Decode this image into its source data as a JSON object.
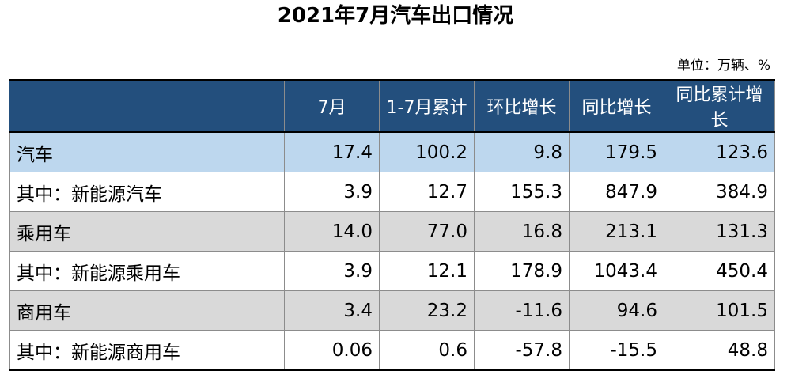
{
  "title": "2021年7月汽车出口情况",
  "unit": "单位：万辆、%",
  "table": {
    "headers": [
      "",
      "7月",
      "1-7月累计",
      "环比增长",
      "同比增长",
      "同比累计增长"
    ],
    "rows": [
      {
        "label": "汽车",
        "values": [
          "17.4",
          "100.2",
          "9.8",
          "179.5",
          "123.6"
        ]
      },
      {
        "label": "其中：新能源汽车",
        "values": [
          "3.9",
          "12.7",
          "155.3",
          "847.9",
          "384.9"
        ]
      },
      {
        "label": "乘用车",
        "values": [
          "14.0",
          "77.0",
          "16.8",
          "213.1",
          "131.3"
        ]
      },
      {
        "label": "其中：新能源乘用车",
        "values": [
          "3.9",
          "12.1",
          "178.9",
          "1043.4",
          "450.4"
        ]
      },
      {
        "label": "商用车",
        "values": [
          "3.4",
          "23.2",
          "-11.6",
          "94.6",
          "101.5"
        ]
      },
      {
        "label": "其中：新能源商用车",
        "values": [
          "0.06",
          "0.6",
          "-57.8",
          "-15.5",
          "48.8"
        ]
      }
    ]
  }
}
